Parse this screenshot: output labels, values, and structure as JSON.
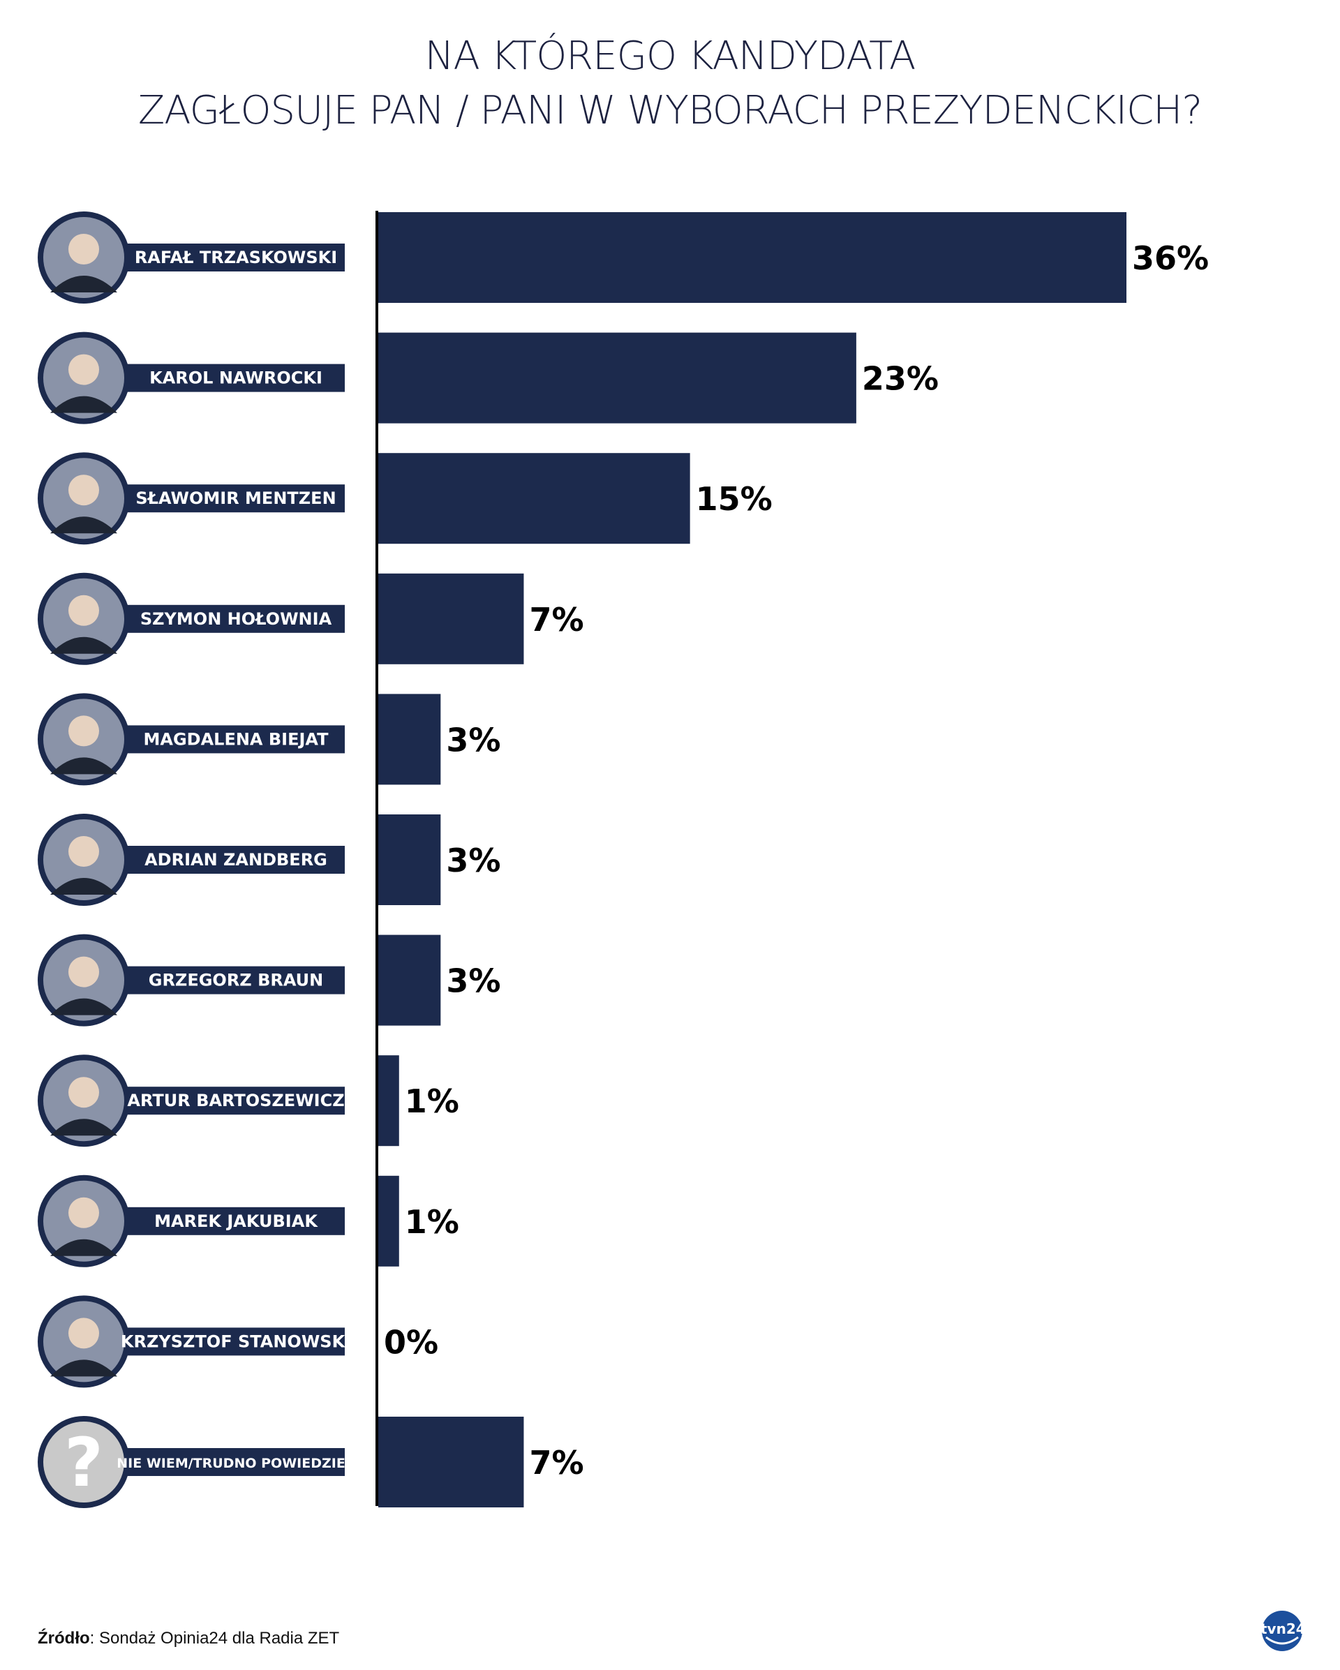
{
  "title_line1": "NA KTÓREGO KANDYDATA",
  "title_line2": "ZAGŁOSUJE PAN / PANI W WYBORACH PREZYDENCKICH?",
  "source_label": "Źródło",
  "source_text": ": Sondaż Opinia24 dla Radia ZET",
  "logo_text": "tvn24",
  "colors": {
    "bar": "#1c2a4d",
    "badge": "#1c2a4d",
    "unknown": "#c9c9c9"
  },
  "chart_data": {
    "type": "bar",
    "orientation": "horizontal",
    "title": "NA KTÓREGO KANDYDATA ZAGŁOSUJE PAN / PANI W WYBORACH PREZYDENCKICH?",
    "categories": [
      "RAFAŁ TRZASKOWSKI",
      "KAROL NAWROCKI",
      "SŁAWOMIR MENTZEN",
      "SZYMON HOŁOWNIA",
      "MAGDALENA BIEJAT",
      "ADRIAN ZANDBERG",
      "GRZEGORZ BRAUN",
      "ARTUR BARTOSZEWICZ",
      "MAREK JAKUBIAK",
      "KRZYSZTOF STANOWSKI",
      "NIE WIEM/TRUDNO POWIEDZIEĆ"
    ],
    "values": [
      36,
      23,
      15,
      7,
      3,
      3,
      3,
      1,
      1,
      0,
      7
    ],
    "value_labels": [
      "36%",
      "23%",
      "15%",
      "7%",
      "3%",
      "3%",
      "3%",
      "1%",
      "1%",
      "0%",
      "7%"
    ],
    "unit": "%",
    "xlim": [
      0,
      36
    ],
    "grid": false,
    "legend": "none"
  }
}
